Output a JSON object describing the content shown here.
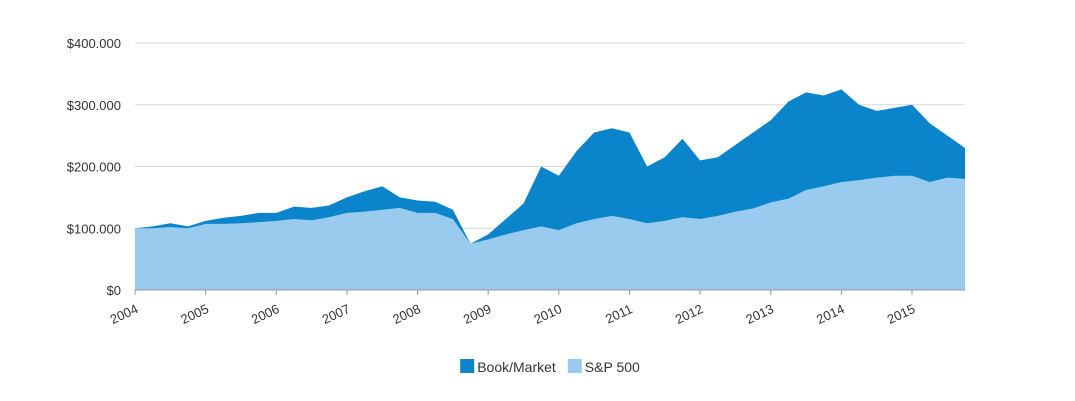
{
  "chart_data": {
    "type": "area",
    "x": [
      2004,
      2004.25,
      2004.5,
      2004.75,
      2005,
      2005.25,
      2005.5,
      2005.75,
      2006,
      2006.25,
      2006.5,
      2006.75,
      2007,
      2007.25,
      2007.5,
      2007.75,
      2008,
      2008.25,
      2008.5,
      2008.75,
      2009,
      2009.25,
      2009.5,
      2009.75,
      2010,
      2010.25,
      2010.5,
      2010.75,
      2011,
      2011.25,
      2011.5,
      2011.75,
      2012,
      2012.25,
      2012.5,
      2012.75,
      2013,
      2013.25,
      2013.5,
      2013.75,
      2014,
      2014.25,
      2014.5,
      2014.75,
      2015,
      2015.25,
      2015.5,
      2015.75
    ],
    "series": [
      {
        "name": "Book/Market",
        "color": "#0a85cc",
        "values": [
          100000,
          103000,
          108000,
          103000,
          112000,
          117000,
          120000,
          125000,
          125000,
          135000,
          133000,
          137000,
          150000,
          160000,
          168000,
          150000,
          145000,
          143000,
          130000,
          75000,
          90000,
          115000,
          140000,
          200000,
          185000,
          225000,
          255000,
          262000,
          255000,
          200000,
          215000,
          245000,
          210000,
          215000,
          235000,
          255000,
          275000,
          305000,
          320000,
          315000,
          325000,
          300000,
          290000,
          295000,
          300000,
          270000,
          250000,
          230000
        ]
      },
      {
        "name": "S&P 500",
        "color": "#99cbee",
        "values": [
          100000,
          100000,
          102000,
          100000,
          107000,
          107000,
          108000,
          110000,
          112000,
          115000,
          113000,
          118000,
          125000,
          127000,
          130000,
          133000,
          125000,
          125000,
          115000,
          75000,
          82000,
          90000,
          97000,
          103000,
          97000,
          108000,
          115000,
          120000,
          115000,
          108000,
          112000,
          118000,
          115000,
          120000,
          127000,
          132000,
          142000,
          148000,
          162000,
          168000,
          175000,
          178000,
          182000,
          185000,
          185000,
          175000,
          182000,
          180000
        ]
      }
    ],
    "xlim": [
      2004,
      2015.75
    ],
    "xticks": [
      2004,
      2005,
      2006,
      2007,
      2008,
      2009,
      2010,
      2011,
      2012,
      2013,
      2014,
      2015
    ],
    "ylim": [
      0,
      400000
    ],
    "yticks": [
      {
        "value": 0,
        "label": "$0"
      },
      {
        "value": 100000,
        "label": "$100.000"
      },
      {
        "value": 200000,
        "label": "$200.000"
      },
      {
        "value": 300000,
        "label": "$300.000"
      },
      {
        "value": 400000,
        "label": "$400.000"
      }
    ],
    "grid": true,
    "legend": "bottom"
  }
}
